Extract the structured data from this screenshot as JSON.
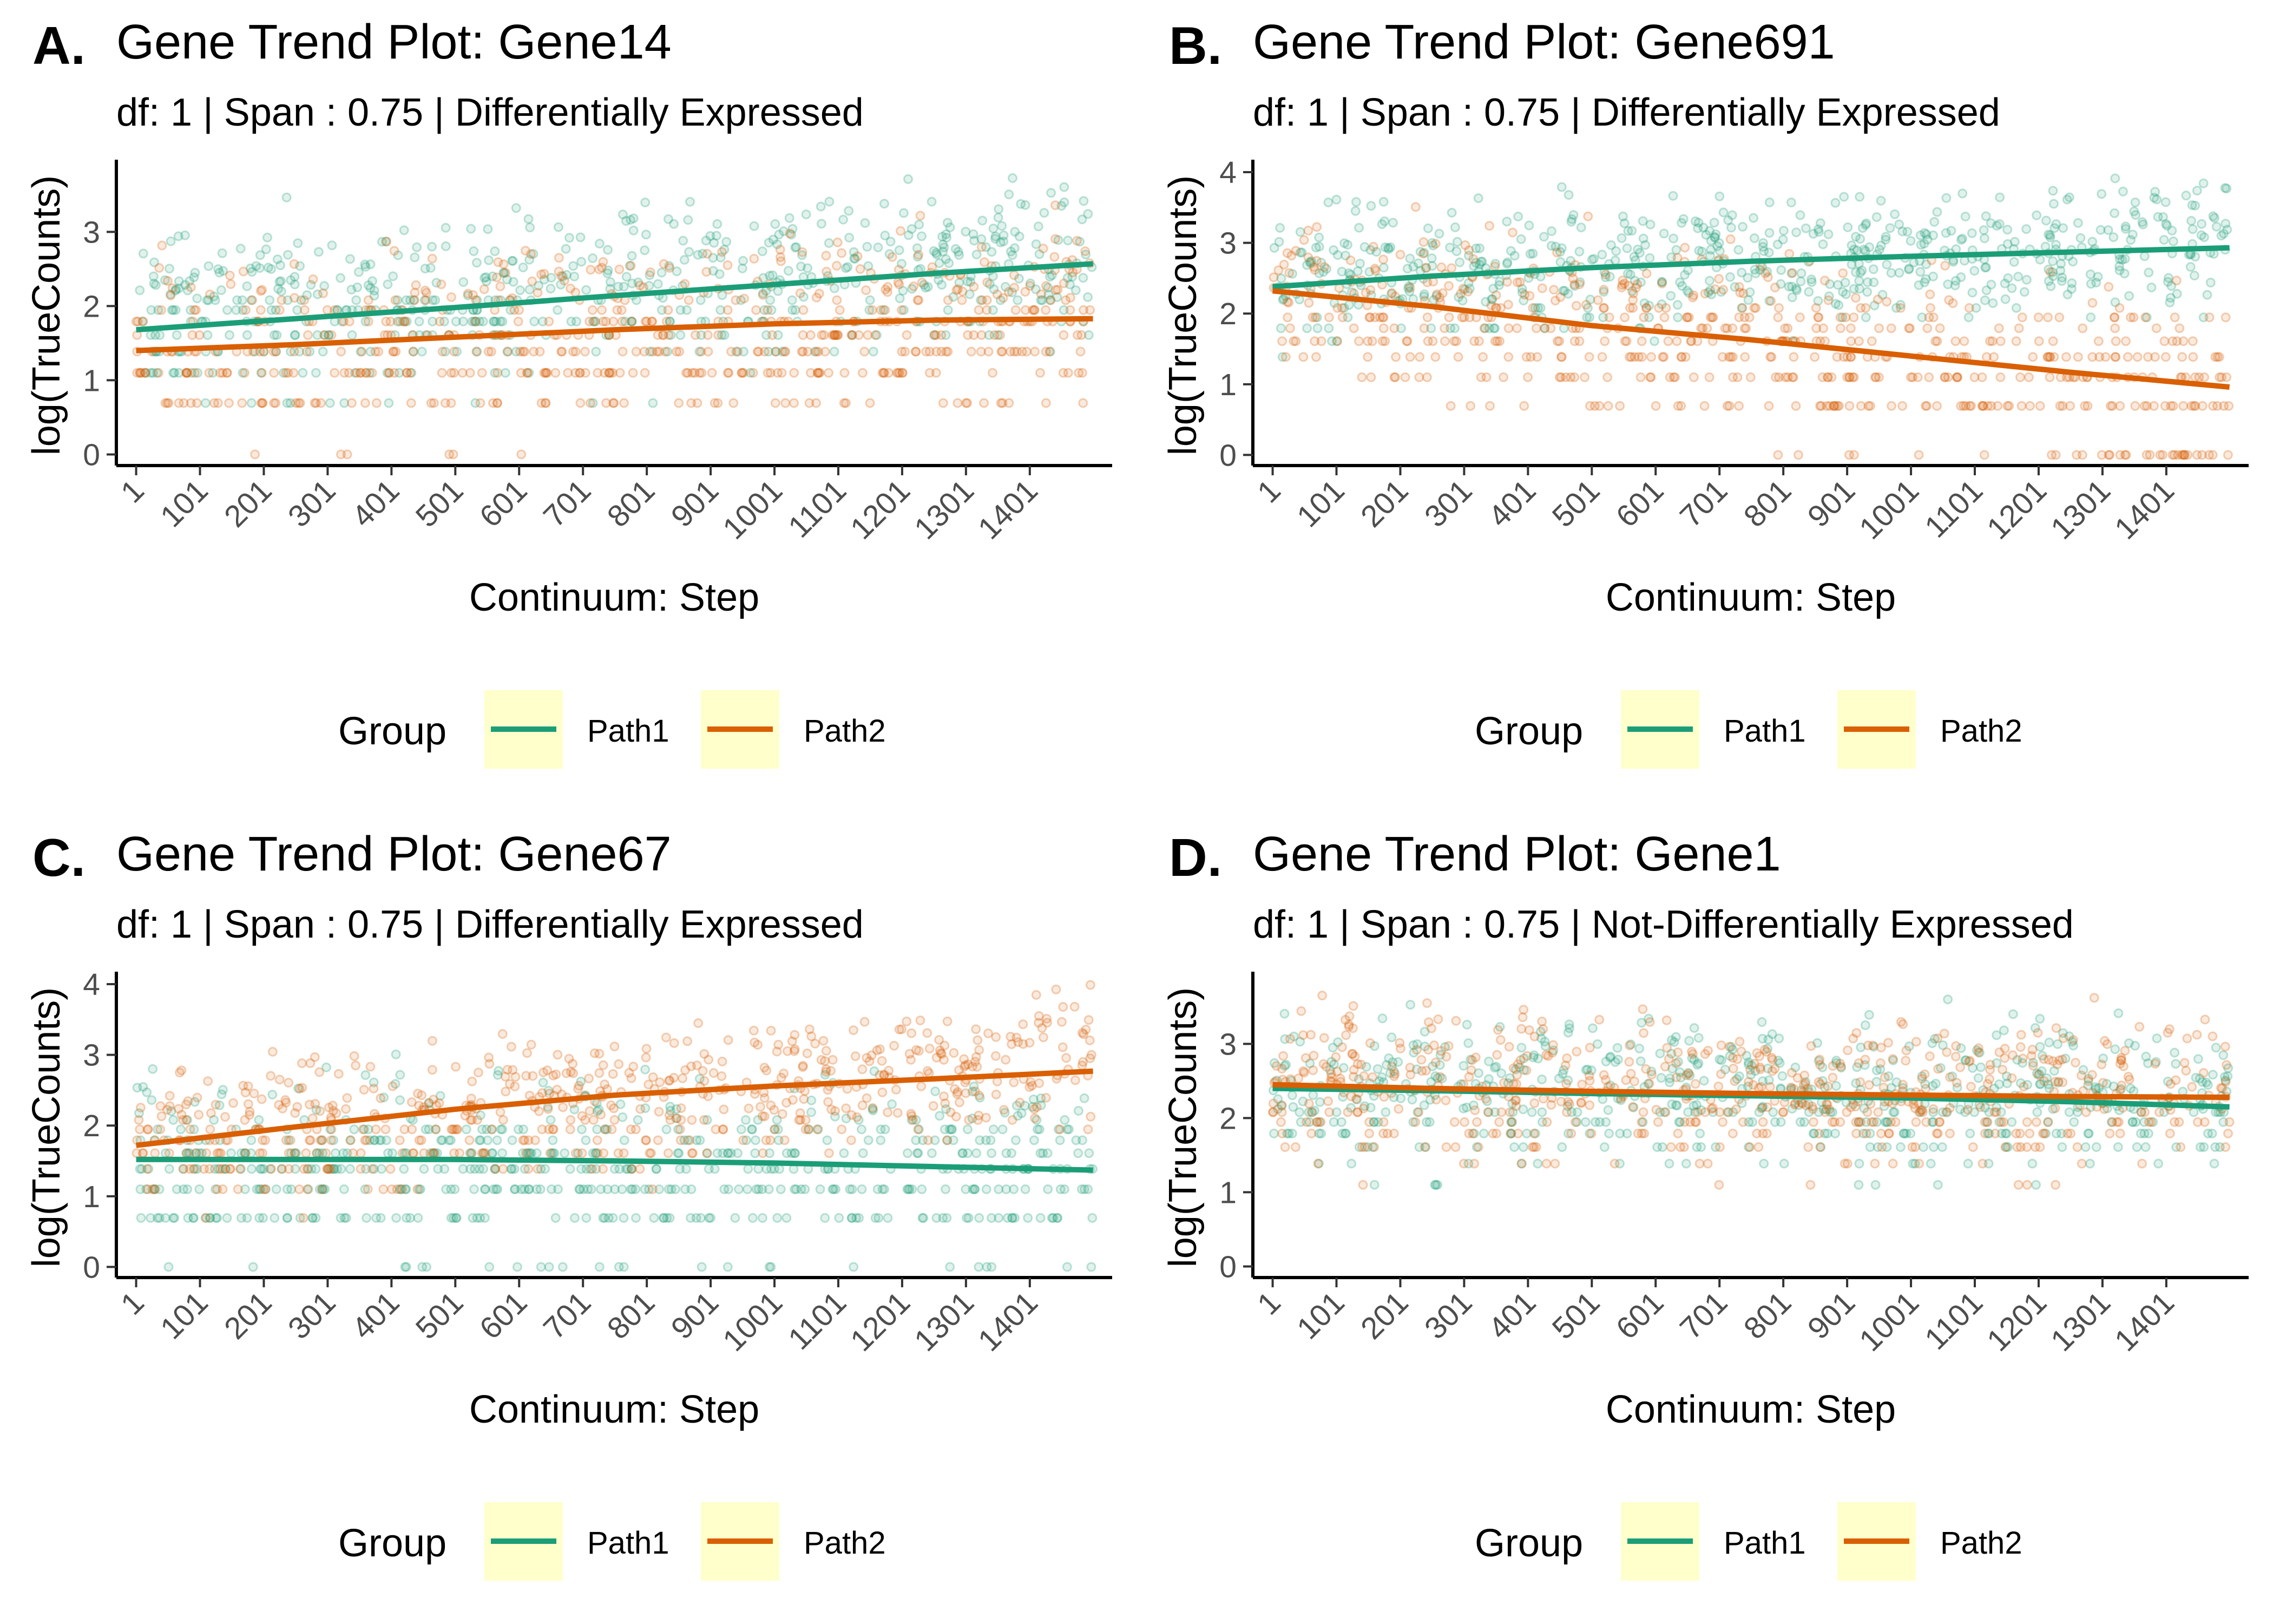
{
  "chart_data": [
    {
      "type": "scatter",
      "panel_label": "A.",
      "title": "Gene Trend Plot: Gene14",
      "subtitle": "df: 1 | Span : 0.75 | Differentially Expressed",
      "xlabel": "Continuum: Step",
      "ylabel": "log(TrueCounts)",
      "xlim": [
        -30,
        1530
      ],
      "ylim": [
        -0.15,
        3.9
      ],
      "x_ticks": [
        1,
        101,
        201,
        301,
        401,
        501,
        601,
        701,
        801,
        901,
        1001,
        1101,
        1201,
        1301,
        1401
      ],
      "y_ticks": [
        0,
        1,
        2,
        3
      ],
      "legend": {
        "title": "Group",
        "position": "bottom",
        "entries": [
          "Path1",
          "Path2"
        ]
      },
      "series": [
        {
          "name": "Path1",
          "color": "#1b9e77",
          "trend": {
            "x": [
              1,
              250,
              500,
              750,
              1000,
              1250,
              1500
            ],
            "y": [
              1.68,
              1.83,
              1.98,
              2.14,
              2.29,
              2.44,
              2.57
            ]
          },
          "scatter": {
            "mean_start": 1.8,
            "mean_end": 2.6,
            "spread": 0.55
          }
        },
        {
          "name": "Path2",
          "color": "#d95f02",
          "trend": {
            "x": [
              1,
              250,
              500,
              750,
              1000,
              1250,
              1500
            ],
            "y": [
              1.4,
              1.48,
              1.58,
              1.68,
              1.76,
              1.81,
              1.83
            ]
          },
          "scatter": {
            "mean_start": 1.4,
            "mean_end": 1.8,
            "spread": 0.6
          }
        }
      ]
    },
    {
      "type": "scatter",
      "panel_label": "B.",
      "title": "Gene Trend Plot: Gene691",
      "subtitle": "df: 1 | Span : 0.75 | Differentially Expressed",
      "xlabel": "Continuum: Step",
      "ylabel": "log(TrueCounts)",
      "xlim": [
        -30,
        1530
      ],
      "ylim": [
        -0.15,
        4.1
      ],
      "x_ticks": [
        1,
        101,
        201,
        301,
        401,
        501,
        601,
        701,
        801,
        901,
        1001,
        1101,
        1201,
        1301,
        1401
      ],
      "y_ticks": [
        0,
        1,
        2,
        3,
        4
      ],
      "legend": {
        "title": "Group",
        "position": "bottom",
        "entries": [
          "Path1",
          "Path2"
        ]
      },
      "series": [
        {
          "name": "Path1",
          "color": "#1b9e77",
          "trend": {
            "x": [
              1,
              250,
              500,
              750,
              1000,
              1250,
              1500
            ],
            "y": [
              2.38,
              2.53,
              2.65,
              2.74,
              2.81,
              2.87,
              2.93
            ]
          },
          "scatter": {
            "mean_start": 2.5,
            "mean_end": 3.0,
            "spread": 0.45
          }
        },
        {
          "name": "Path2",
          "color": "#d95f02",
          "trend": {
            "x": [
              1,
              250,
              500,
              750,
              1000,
              1250,
              1500
            ],
            "y": [
              2.32,
              2.1,
              1.83,
              1.63,
              1.4,
              1.17,
              0.96
            ]
          },
          "scatter": {
            "mean_start": 2.3,
            "mean_end": 0.9,
            "spread": 0.6
          }
        }
      ]
    },
    {
      "type": "scatter",
      "panel_label": "C.",
      "title": "Gene Trend Plot: Gene67",
      "subtitle": "df: 1 | Span : 0.75 | Differentially Expressed",
      "xlabel": "Continuum: Step",
      "ylabel": "log(TrueCounts)",
      "xlim": [
        -30,
        1530
      ],
      "ylim": [
        -0.15,
        4.1
      ],
      "x_ticks": [
        1,
        101,
        201,
        301,
        401,
        501,
        601,
        701,
        801,
        901,
        1001,
        1101,
        1201,
        1301,
        1401
      ],
      "y_ticks": [
        0,
        1,
        2,
        3,
        4
      ],
      "legend": {
        "title": "Group",
        "position": "bottom",
        "entries": [
          "Path1",
          "Path2"
        ]
      },
      "series": [
        {
          "name": "Path1",
          "color": "#1b9e77",
          "trend": {
            "x": [
              1,
              250,
              500,
              750,
              1000,
              1250,
              1500
            ],
            "y": [
              1.52,
              1.52,
              1.52,
              1.5,
              1.47,
              1.42,
              1.37
            ]
          },
          "scatter": {
            "mean_start": 1.5,
            "mean_end": 1.35,
            "spread": 0.6
          }
        },
        {
          "name": "Path2",
          "color": "#d95f02",
          "trend": {
            "x": [
              1,
              250,
              500,
              750,
              1000,
              1250,
              1500
            ],
            "y": [
              1.72,
              1.98,
              2.23,
              2.43,
              2.56,
              2.66,
              2.77
            ]
          },
          "scatter": {
            "mean_start": 1.8,
            "mean_end": 2.8,
            "spread": 0.5
          }
        }
      ]
    },
    {
      "type": "scatter",
      "panel_label": "D.",
      "title": "Gene Trend Plot: Gene1",
      "subtitle": "df: 1 | Span : 0.75 | Not-Differentially Expressed",
      "xlabel": "Continuum: Step",
      "ylabel": "log(TrueCounts)",
      "xlim": [
        -30,
        1530
      ],
      "ylim": [
        -0.15,
        3.9
      ],
      "x_ticks": [
        1,
        101,
        201,
        301,
        401,
        501,
        601,
        701,
        801,
        901,
        1001,
        1101,
        1201,
        1301,
        1401
      ],
      "y_ticks": [
        0,
        1,
        2,
        3
      ],
      "legend": {
        "title": "Group",
        "position": "bottom",
        "entries": [
          "Path1",
          "Path2"
        ]
      },
      "series": [
        {
          "name": "Path1",
          "color": "#1b9e77",
          "trend": {
            "x": [
              1,
              250,
              500,
              750,
              1000,
              1250,
              1500
            ],
            "y": [
              2.4,
              2.37,
              2.33,
              2.3,
              2.27,
              2.22,
              2.15
            ]
          },
          "scatter": {
            "mean_start": 2.4,
            "mean_end": 2.2,
            "spread": 0.5
          }
        },
        {
          "name": "Path2",
          "color": "#d95f02",
          "trend": {
            "x": [
              1,
              250,
              500,
              750,
              1000,
              1250,
              1500
            ],
            "y": [
              2.45,
              2.4,
              2.36,
              2.33,
              2.31,
              2.29,
              2.28
            ]
          },
          "scatter": {
            "mean_start": 2.45,
            "mean_end": 2.3,
            "spread": 0.5
          }
        }
      ]
    }
  ]
}
